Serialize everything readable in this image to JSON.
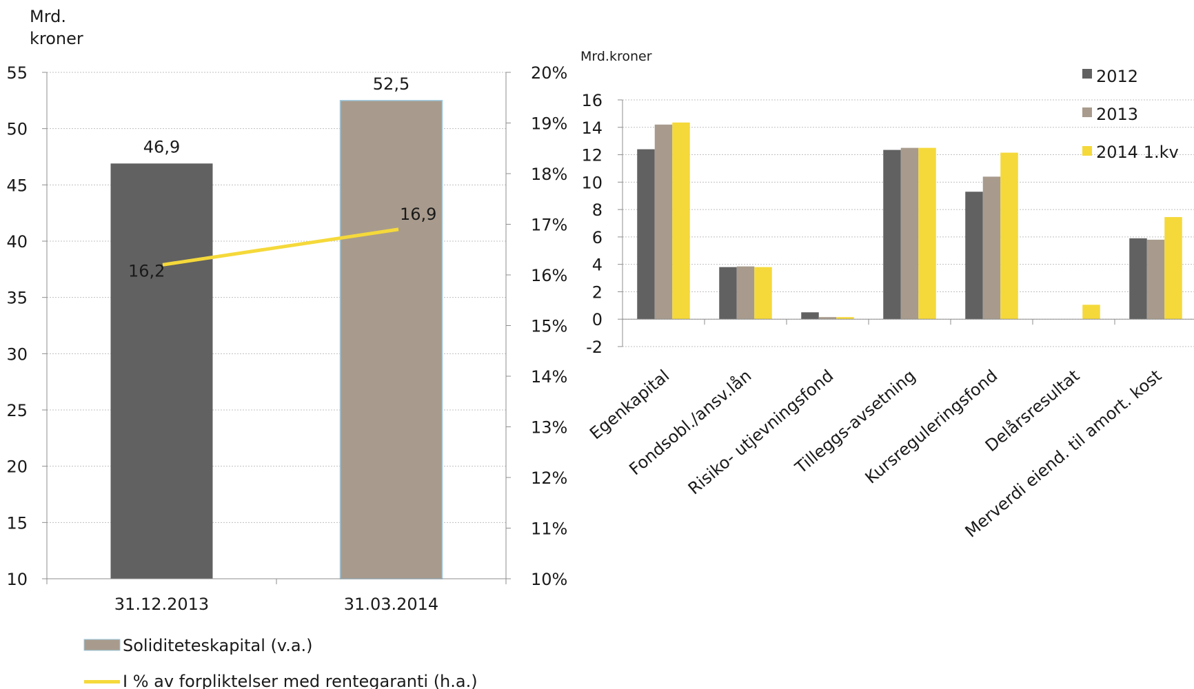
{
  "colors": {
    "dark": "#616161",
    "taupe": "#a89b8d",
    "yellow": "#f5d93a",
    "grid": "#bfbfbf",
    "axis": "#8c8c8c"
  },
  "chart_data": [
    {
      "type": "bar",
      "unit_label_line1": "Mrd.",
      "unit_label_line2": "kroner",
      "categories": [
        "31.12.2013",
        "31.03.2014"
      ],
      "series": [
        {
          "name": "Soliditeteskapital (v.a.)",
          "values": [
            46.9,
            52.5
          ],
          "value_labels": [
            "46,9",
            "52,5"
          ],
          "axis": "left"
        },
        {
          "name": "I % av forpliktelser med rentegaranti (h.a.)",
          "type": "line",
          "values": [
            16.2,
            16.9
          ],
          "value_labels": [
            "16,2",
            "16,9"
          ],
          "axis": "right"
        }
      ],
      "ylim": [
        10,
        55
      ],
      "yticks": [
        "10",
        "15",
        "20",
        "25",
        "30",
        "35",
        "40",
        "45",
        "50",
        "55"
      ],
      "y2lim": [
        10,
        20
      ],
      "y2ticks": [
        "10%",
        "11%",
        "12%",
        "13%",
        "14%",
        "15%",
        "16%",
        "17%",
        "18%",
        "19%",
        "20%"
      ],
      "grid": true,
      "legend_position": "bottom"
    },
    {
      "type": "bar",
      "unit_label": "Mrd.kroner",
      "categories": [
        "Egenkapital",
        "Fondsobl./ansv.lån",
        "Risiko- utjevningsfond",
        "Tilleggs-avsetning",
        "Kursreguleringsfond",
        "Delårsresultat",
        "Merverdi eiend. til amort. kost"
      ],
      "series": [
        {
          "name": "2012",
          "values": [
            12.4,
            3.8,
            0.5,
            12.35,
            9.3,
            null,
            5.9
          ]
        },
        {
          "name": "2013",
          "values": [
            14.2,
            3.85,
            0.15,
            12.5,
            10.4,
            null,
            5.8
          ]
        },
        {
          "name": "2014 1.kv",
          "values": [
            14.35,
            3.8,
            0.15,
            12.5,
            12.15,
            1.05,
            7.45
          ]
        }
      ],
      "ylim": [
        -2,
        16
      ],
      "yticks": [
        "-2",
        "0",
        "2",
        "4",
        "6",
        "8",
        "10",
        "12",
        "14",
        "16"
      ],
      "grid": true,
      "legend_position": "top-right"
    }
  ]
}
